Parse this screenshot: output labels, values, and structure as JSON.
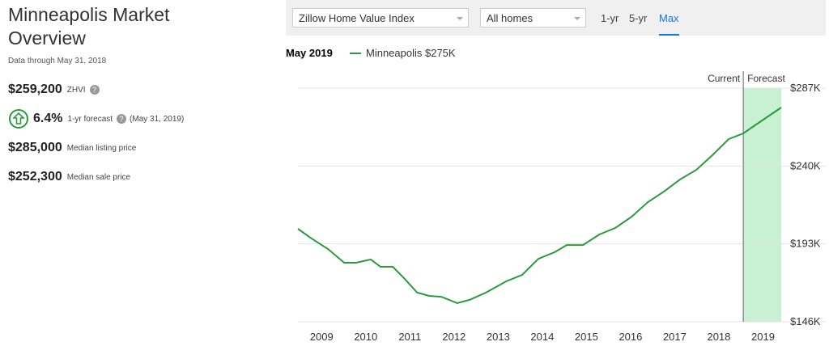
{
  "sidebar": {
    "title": "Minneapolis Market Overview",
    "data_through": "Data through May 31, 2018",
    "zhvi": {
      "value": "$259,200",
      "label": "ZHVI"
    },
    "forecast": {
      "value": "6.4%",
      "label": "1-yr forecast",
      "date": "(May 31, 2019)"
    },
    "listing": {
      "value": "$285,000",
      "label": "Median listing price"
    },
    "sale": {
      "value": "$252,300",
      "label": "Median sale price"
    }
  },
  "controls": {
    "index_select": "Zillow Home Value Index",
    "homes_select": "All homes",
    "ranges": [
      "1-yr",
      "5-yr",
      "Max"
    ]
  },
  "chart_data": {
    "type": "line",
    "hover_date": "May 2019",
    "x": [
      2008.5,
      2008.81,
      2009.18,
      2009.55,
      2009.82,
      2010.15,
      2010.37,
      2010.65,
      2010.92,
      2011.2,
      2011.47,
      2011.75,
      2012.11,
      2012.39,
      2012.76,
      2013.22,
      2013.58,
      2013.95,
      2014.32,
      2014.59,
      2014.96,
      2015.33,
      2015.69,
      2016.06,
      2016.43,
      2016.79,
      2017.16,
      2017.53,
      2017.89,
      2018.26,
      2018.59,
      2018.99,
      2019.45
    ],
    "series": [
      {
        "name": "Minneapolis $275K",
        "color": "#2a9a3c",
        "values": [
          202.1,
          196.2,
          189.9,
          181.6,
          181.6,
          183.6,
          179.2,
          179.2,
          171.9,
          163.6,
          161.6,
          161.1,
          157.2,
          159.2,
          163.6,
          170.4,
          174.3,
          184.0,
          188.0,
          192.3,
          192.3,
          198.7,
          202.6,
          209.4,
          218.2,
          224.5,
          231.9,
          237.7,
          246.5,
          256.2,
          259.7,
          267.0,
          275.3
        ]
      }
    ],
    "xlim": [
      2008.5,
      2019.45
    ],
    "xticks": [
      2009,
      2010,
      2011,
      2012,
      2013,
      2014,
      2015,
      2016,
      2017,
      2018,
      2019
    ],
    "ylim": [
      146,
      287
    ],
    "yticks": [
      {
        "value": 146,
        "label": "$146K"
      },
      {
        "value": 193,
        "label": "$193K"
      },
      {
        "value": 240,
        "label": "$240K"
      },
      {
        "value": 287,
        "label": "$287K"
      }
    ],
    "grid": true,
    "forecast_start": 2018.59,
    "current_label": "Current",
    "forecast_label": "Forecast",
    "forecast_color": "#c8f0d2"
  }
}
